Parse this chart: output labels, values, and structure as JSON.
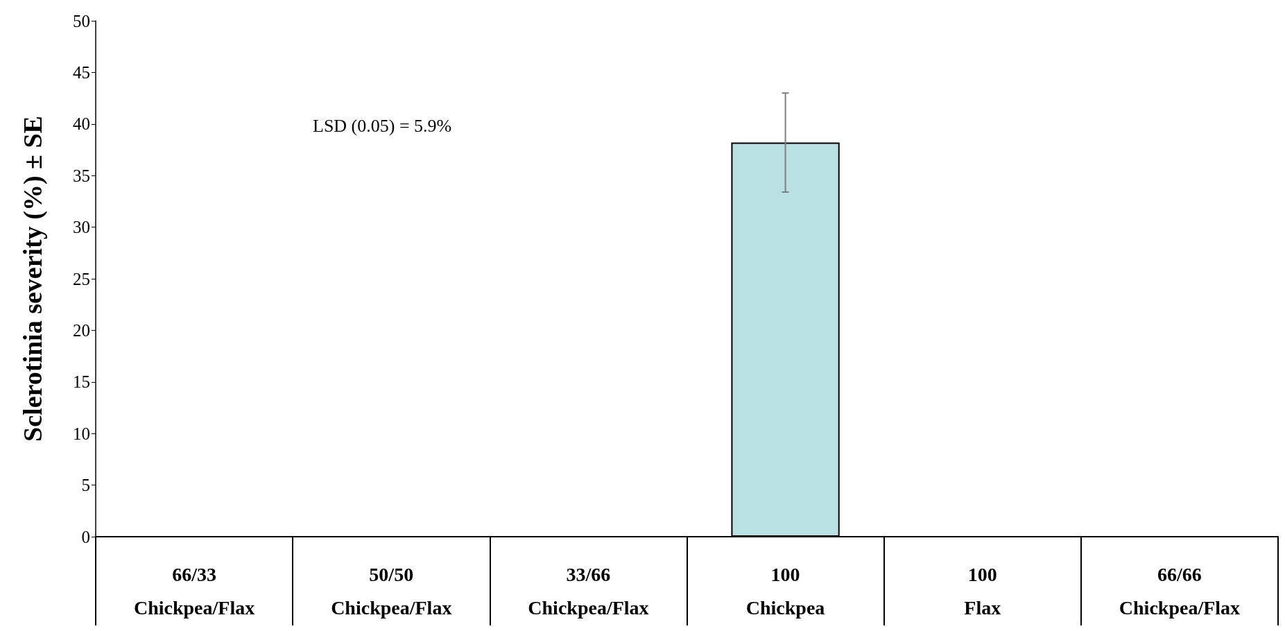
{
  "chart_data": {
    "type": "bar",
    "ylabel": "Sclerotinia severity (%) ± SE",
    "categories": [
      "66/33\nChickpea/Flax",
      "50/50\nChickpea/Flax",
      "33/66\nChickpea/Flax",
      "100\nChickpea",
      "100\nFlax",
      "66/66\nChickpea/Flax"
    ],
    "values": [
      0,
      0,
      0,
      38.2,
      0,
      0
    ],
    "errors": [
      null,
      null,
      null,
      4.8,
      null,
      null
    ],
    "color": "#b9e0e3",
    "ylim": [
      0,
      50
    ],
    "yticks": [
      0,
      5,
      10,
      15,
      20,
      25,
      30,
      35,
      40,
      45,
      50
    ],
    "grid": false,
    "annotations": [
      "LSD (0.05) = 5.9%"
    ]
  }
}
